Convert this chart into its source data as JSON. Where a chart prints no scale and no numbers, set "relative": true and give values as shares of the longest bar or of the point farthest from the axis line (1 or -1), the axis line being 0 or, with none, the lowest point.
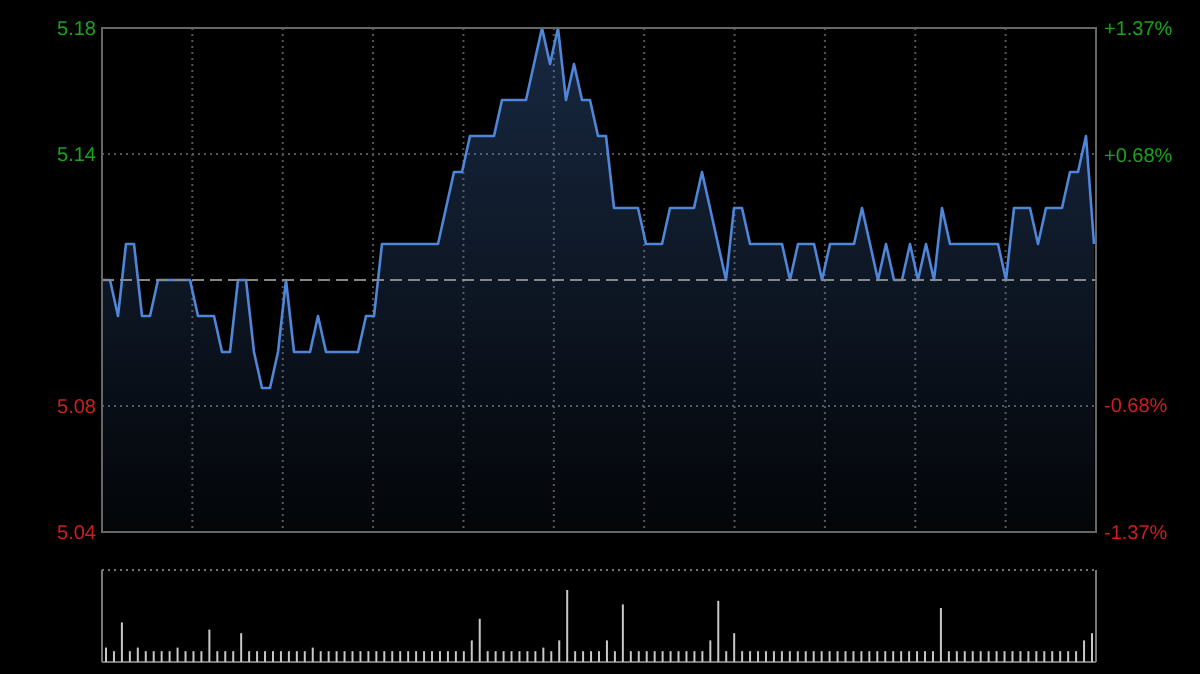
{
  "chart_data": [
    {
      "type": "area",
      "categories": [
        null,
        null,
        null,
        null,
        null,
        null,
        null,
        null,
        null,
        null,
        null,
        null,
        null,
        null,
        null,
        null,
        null,
        null,
        null,
        null,
        null,
        null,
        null,
        null,
        null,
        null,
        null,
        null,
        null,
        null,
        null,
        null,
        null,
        null,
        null,
        null,
        null,
        null,
        null,
        null,
        null,
        null,
        null,
        null,
        null,
        null,
        null,
        null,
        null,
        null,
        null,
        null,
        null,
        null,
        null,
        null,
        null,
        null,
        null,
        null,
        null,
        null,
        null,
        null,
        null,
        null,
        null,
        null,
        null,
        null,
        null,
        null,
        null,
        null,
        null,
        null,
        null,
        null,
        null,
        null,
        null,
        null,
        null,
        null,
        null,
        null,
        null,
        null,
        null,
        null,
        null,
        null,
        null,
        null,
        null,
        null,
        null,
        null,
        null,
        null,
        null,
        null,
        null,
        null,
        null,
        null,
        null,
        null,
        null,
        null,
        null,
        null,
        null,
        null,
        null,
        null,
        null,
        null,
        null,
        null,
        null,
        null,
        null,
        null,
        null
      ],
      "series": [
        {
          "color": "#4f86d8",
          "values": [
            5.11,
            5.11,
            5.1,
            5.12,
            5.12,
            5.1,
            5.1,
            5.11,
            5.11,
            5.11,
            5.11,
            5.11,
            5.1,
            5.1,
            5.1,
            5.09,
            5.09,
            5.11,
            5.11,
            5.09,
            5.08,
            5.08,
            5.09,
            5.11,
            5.09,
            5.09,
            5.09,
            5.1,
            5.09,
            5.09,
            5.09,
            5.09,
            5.09,
            5.1,
            5.1,
            5.12,
            5.12,
            5.12,
            5.12,
            5.12,
            5.12,
            5.12,
            5.12,
            5.13,
            5.14,
            5.14,
            5.15,
            5.15,
            5.15,
            5.15,
            5.16,
            5.16,
            5.16,
            5.16,
            5.17,
            5.18,
            5.17,
            5.18,
            5.16,
            5.17,
            5.16,
            5.16,
            5.15,
            5.15,
            5.13,
            5.13,
            5.13,
            5.13,
            5.12,
            5.12,
            5.12,
            5.13,
            5.13,
            5.13,
            5.13,
            5.14,
            5.13,
            5.12,
            5.11,
            5.13,
            5.13,
            5.12,
            5.12,
            5.12,
            5.12,
            5.12,
            5.11,
            5.12,
            5.12,
            5.12,
            5.11,
            5.12,
            5.12,
            5.12,
            5.12,
            5.13,
            5.12,
            5.11,
            5.12,
            5.11,
            5.11,
            5.12,
            5.11,
            5.12,
            5.11,
            5.13,
            5.12,
            5.12,
            5.12,
            5.12,
            5.12,
            5.12,
            5.12,
            5.11,
            5.13,
            5.13,
            5.13,
            5.12,
            5.13,
            5.13,
            5.13,
            5.14,
            5.14,
            5.15,
            5.12
          ]
        }
      ],
      "ylim": [
        5.04,
        5.18
      ],
      "yticks": [
        5.18,
        {
          "value": 5.145,
          "label": "5.14"
        },
        {
          "value": 5.075,
          "label": "5.08"
        },
        5.04
      ],
      "y2lim": [
        -1.37,
        1.37
      ],
      "y2ticks": [
        {
          "value": 1.37,
          "label": "+1.37%"
        },
        {
          "value": 0.68,
          "label": "+0.68%"
        },
        {
          "value": -0.68,
          "label": "-0.68%"
        },
        {
          "value": -1.37,
          "label": "-1.37%"
        }
      ],
      "ref_lines": [
        {
          "axis": "y",
          "value": 5.11,
          "line_style": "dashed"
        }
      ],
      "grid": true
    },
    {
      "type": "bar",
      "relative": true,
      "grid": true,
      "color": "#c8c8c8",
      "categories": [
        null,
        null,
        null,
        null,
        null,
        null,
        null,
        null,
        null,
        null,
        null,
        null,
        null,
        null,
        null,
        null,
        null,
        null,
        null,
        null,
        null,
        null,
        null,
        null,
        null,
        null,
        null,
        null,
        null,
        null,
        null,
        null,
        null,
        null,
        null,
        null,
        null,
        null,
        null,
        null,
        null,
        null,
        null,
        null,
        null,
        null,
        null,
        null,
        null,
        null,
        null,
        null,
        null,
        null,
        null,
        null,
        null,
        null,
        null,
        null,
        null,
        null,
        null,
        null,
        null,
        null,
        null,
        null,
        null,
        null,
        null,
        null,
        null,
        null,
        null,
        null,
        null,
        null,
        null,
        null,
        null,
        null,
        null,
        null,
        null,
        null,
        null,
        null,
        null,
        null,
        null,
        null,
        null,
        null,
        null,
        null,
        null,
        null,
        null,
        null,
        null,
        null,
        null,
        null,
        null,
        null,
        null,
        null,
        null,
        null,
        null,
        null,
        null,
        null,
        null,
        null,
        null,
        null,
        null,
        null,
        null,
        null,
        null,
        null,
        null
      ],
      "values": [
        0.2,
        0.15,
        0.55,
        0.15,
        0.2,
        0.15,
        0.15,
        0.15,
        0.15,
        0.2,
        0.15,
        0.15,
        0.15,
        0.45,
        0.15,
        0.15,
        0.15,
        0.4,
        0.15,
        0.15,
        0.15,
        0.15,
        0.15,
        0.15,
        0.15,
        0.15,
        0.2,
        0.15,
        0.15,
        0.15,
        0.15,
        0.15,
        0.15,
        0.15,
        0.15,
        0.15,
        0.15,
        0.15,
        0.15,
        0.15,
        0.15,
        0.15,
        0.15,
        0.15,
        0.15,
        0.15,
        0.3,
        0.6,
        0.15,
        0.15,
        0.15,
        0.15,
        0.15,
        0.15,
        0.15,
        0.2,
        0.15,
        0.3,
        1,
        0.15,
        0.15,
        0.15,
        0.15,
        0.3,
        0.15,
        0.8,
        0.15,
        0.15,
        0.15,
        0.15,
        0.15,
        0.15,
        0.15,
        0.15,
        0.15,
        0.15,
        0.3,
        0.85,
        0.15,
        0.4,
        0.15,
        0.15,
        0.15,
        0.15,
        0.15,
        0.15,
        0.15,
        0.15,
        0.15,
        0.15,
        0.15,
        0.15,
        0.15,
        0.15,
        0.15,
        0.15,
        0.15,
        0.15,
        0.15,
        0.15,
        0.15,
        0.15,
        0.15,
        0.15,
        0.15,
        0.75,
        0.15,
        0.15,
        0.15,
        0.15,
        0.15,
        0.15,
        0.15,
        0.15,
        0.15,
        0.15,
        0.15,
        0.15,
        0.15,
        0.15,
        0.15,
        0.15,
        0.15,
        0.3,
        0.4
      ]
    }
  ]
}
